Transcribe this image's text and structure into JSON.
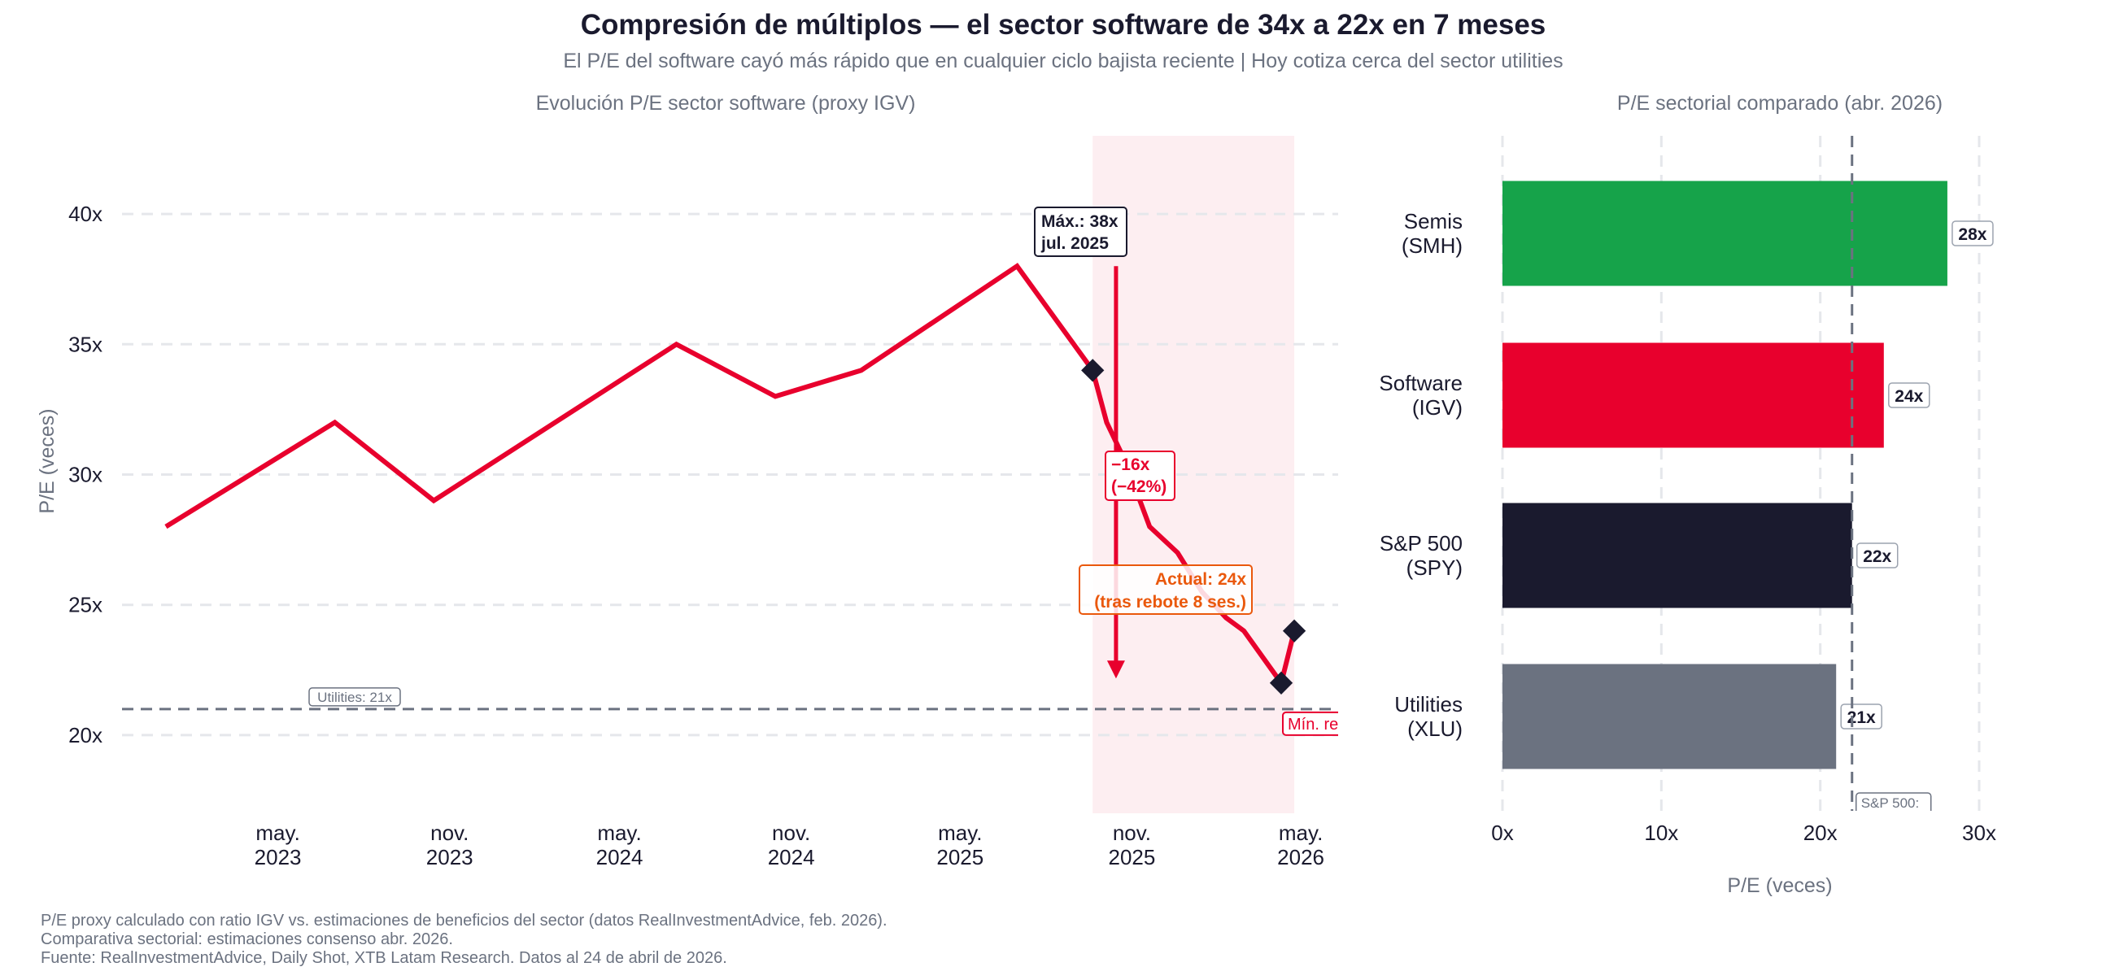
{
  "title": "Compresión de múltiplos — el sector software de 34x a 22x en 7 meses",
  "subtitle": "El P/E del software cayó más rápido que en cualquier ciclo bajista reciente | Hoy cotiza cerca del sector utilities",
  "footer": [
    "P/E proxy calculado con ratio IGV vs. estimaciones de beneficios del sector (datos RealInvestmentAdvice, feb. 2026).",
    "Comparativa sectorial: estimaciones consenso abr. 2026.",
    "Fuente: RealInvestmentAdvice, Daily Shot, XTB Latam Research. Datos al 24 de abril de 2026."
  ],
  "colors": {
    "line": "#e8002d",
    "marker": "#1a1a2e",
    "shade": "#fdeef1",
    "reference": "#6b7280",
    "actual": "#ea580c",
    "grid": "#e5e7eb"
  },
  "chart_data": [
    {
      "type": "line",
      "title": "Evolución P/E sector software (proxy IGV)",
      "ylabel": "P/E (veces)",
      "xlabel": "",
      "ylim": [
        17,
        43
      ],
      "xlim": [
        "2022-11-15",
        "2026-06-10"
      ],
      "yticks": [
        20,
        25,
        30,
        35,
        40
      ],
      "ytick_labels": [
        "20x",
        "25x",
        "30x",
        "35x",
        "40x"
      ],
      "xticks": [
        "2023-05-01",
        "2023-11-01",
        "2024-05-01",
        "2024-11-01",
        "2025-05-01",
        "2025-11-01",
        "2026-05-01"
      ],
      "xtick_labels": [
        [
          "may.",
          "2023"
        ],
        [
          "nov.",
          "2023"
        ],
        [
          "may.",
          "2024"
        ],
        [
          "nov.",
          "2024"
        ],
        [
          "may.",
          "2025"
        ],
        [
          "nov.",
          "2025"
        ],
        [
          "may.",
          "2026"
        ]
      ],
      "grid": true,
      "series": [
        {
          "x": [
            "2023-01-01",
            "2023-07-01",
            "2023-10-15",
            "2024-07-01",
            "2024-10-15",
            "2025-01-15",
            "2025-07-01",
            "2025-09-20",
            "2025-10-05",
            "2025-10-25",
            "2025-11-20",
            "2025-12-20",
            "2026-01-15",
            "2026-02-10",
            "2026-03-01",
            "2026-04-10",
            "2026-04-24"
          ],
          "y": [
            28,
            32,
            29,
            35,
            33,
            34,
            38,
            34,
            32,
            30.5,
            28,
            27,
            25.5,
            24.5,
            24,
            22,
            24
          ]
        }
      ],
      "markers": [
        {
          "x": "2025-09-20",
          "y": 34
        },
        {
          "x": "2026-04-10",
          "y": 22
        },
        {
          "x": "2026-04-24",
          "y": 24
        }
      ],
      "shaded_range": [
        "2025-09-20",
        "2026-04-24"
      ],
      "reference_line": {
        "y": 21,
        "label": "Utilities: 21x"
      },
      "annotations": {
        "max": {
          "lines": [
            "Máx.: 38x",
            "jul. 2025"
          ],
          "x": "2025-07-01",
          "y": 38
        },
        "drop_arrow": {
          "x": "2025-10-15",
          "from": 38,
          "to": 22.3
        },
        "drop": {
          "lines": [
            "−16x",
            "(−42%)"
          ]
        },
        "actual": {
          "lines": [
            "Actual: 24x",
            "(tras rebote 8 ses.)"
          ]
        },
        "min": {
          "label": "Mín. re"
        }
      }
    },
    {
      "type": "bar",
      "orientation": "horizontal",
      "title": "P/E sectorial comparado (abr. 2026)",
      "xlabel": "P/E (veces)",
      "xlim": [
        0,
        31
      ],
      "xticks": [
        0,
        10,
        20,
        30
      ],
      "xtick_labels": [
        "0x",
        "10x",
        "20x",
        "30x"
      ],
      "grid": true,
      "categories": [
        [
          "Semis",
          "(SMH)"
        ],
        [
          "Software",
          "(IGV)"
        ],
        [
          "S&P 500",
          "(SPY)"
        ],
        [
          "Utilities",
          "(XLU)"
        ]
      ],
      "values": [
        28,
        24,
        22,
        21
      ],
      "value_labels": [
        "28x",
        "24x",
        "22x",
        "21x"
      ],
      "bar_colors": [
        "#16a34a",
        "#e8002d",
        "#1a1a2e",
        "#6b7280"
      ],
      "reference_line": {
        "x": 22,
        "label": "S&P 500:"
      }
    }
  ]
}
